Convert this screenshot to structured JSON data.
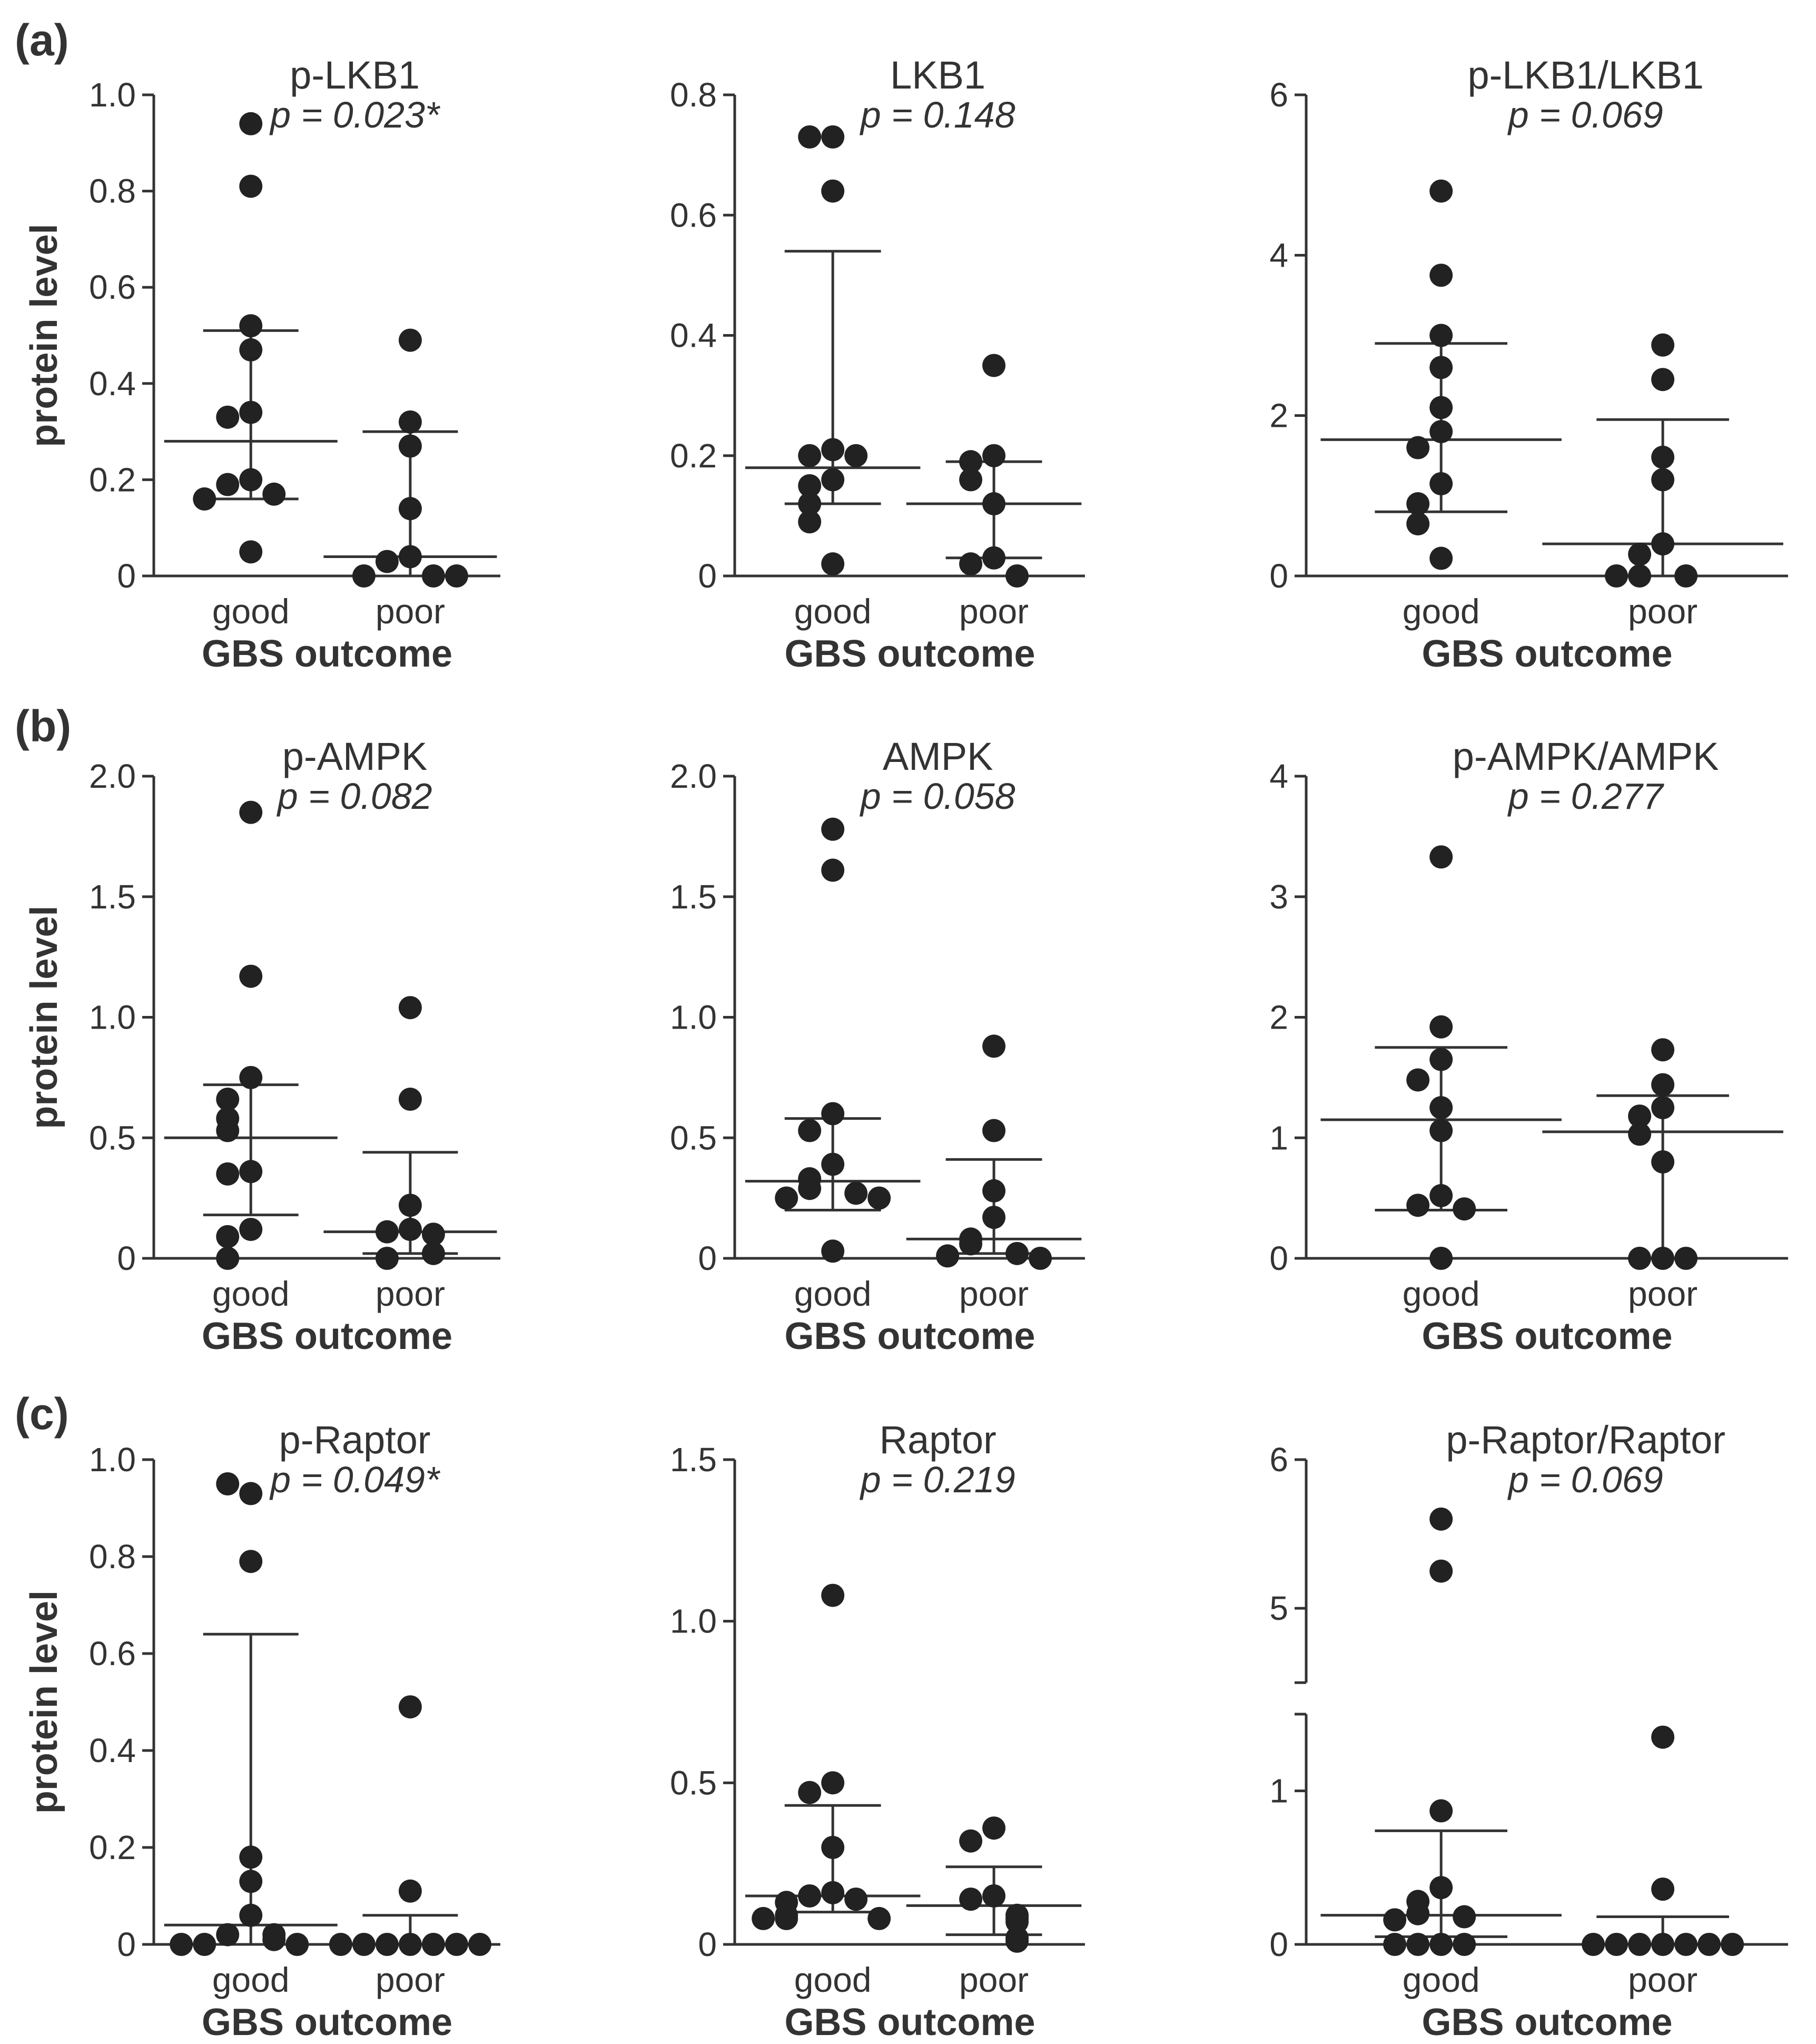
{
  "panel_labels": [
    "(a)",
    "(b)",
    "(c)"
  ],
  "chart_data": [
    {
      "type": "scatter",
      "panel": "a",
      "title": "p-LKB1",
      "pvalue": "p = 0.023*",
      "xlabel": "GBS outcome",
      "ylabel": "protein level",
      "categories": [
        "good",
        "poor"
      ],
      "ylim": [
        0,
        1.0
      ],
      "yticks": [
        "0",
        "0.2",
        "0.4",
        "0.6",
        "0.8",
        "1.0"
      ],
      "series": [
        {
          "name": "good",
          "values": [
            0.94,
            0.81,
            0.52,
            0.47,
            0.34,
            0.33,
            0.2,
            0.19,
            0.17,
            0.16,
            0.05
          ],
          "median": 0.28,
          "q1": 0.16,
          "q3": 0.51
        },
        {
          "name": "poor",
          "values": [
            0.49,
            0.32,
            0.27,
            0.14,
            0.04,
            0.03,
            0.0,
            0.0,
            0.0
          ],
          "median": 0.04,
          "q1": 0.0,
          "q3": 0.3
        }
      ]
    },
    {
      "type": "scatter",
      "panel": "a",
      "title": "LKB1",
      "pvalue": "p = 0.148",
      "xlabel": "GBS outcome",
      "ylabel": "",
      "categories": [
        "good",
        "poor"
      ],
      "ylim": [
        0,
        0.8
      ],
      "yticks": [
        "0",
        "0.2",
        "0.4",
        "0.6",
        "0.8"
      ],
      "series": [
        {
          "name": "good",
          "values": [
            0.73,
            0.73,
            0.64,
            0.21,
            0.2,
            0.2,
            0.16,
            0.15,
            0.12,
            0.09,
            0.02
          ],
          "median": 0.18,
          "q1": 0.12,
          "q3": 0.54
        },
        {
          "name": "poor",
          "values": [
            0.35,
            0.2,
            0.19,
            0.16,
            0.12,
            0.03,
            0.02,
            0.0
          ],
          "median": 0.12,
          "q1": 0.03,
          "q3": 0.19
        }
      ]
    },
    {
      "type": "scatter",
      "panel": "a",
      "title": "p-LKB1/LKB1",
      "pvalue": "p = 0.069",
      "xlabel": "GBS outcome",
      "ylabel": "",
      "categories": [
        "good",
        "poor"
      ],
      "ylim": [
        0,
        6
      ],
      "yticks": [
        "0",
        "2",
        "4",
        "6"
      ],
      "series": [
        {
          "name": "good",
          "values": [
            4.8,
            3.75,
            3.0,
            2.6,
            2.1,
            1.8,
            1.6,
            1.15,
            0.9,
            0.65,
            0.22
          ],
          "median": 1.7,
          "q1": 0.8,
          "q3": 2.9
        },
        {
          "name": "poor",
          "values": [
            2.88,
            2.45,
            1.48,
            1.2,
            0.4,
            0.27,
            0.0,
            0.0,
            0.0
          ],
          "median": 0.4,
          "q1": 0.0,
          "q3": 1.95
        }
      ]
    },
    {
      "type": "scatter",
      "panel": "b",
      "title": "p-AMPK",
      "pvalue": "p = 0.082",
      "xlabel": "GBS outcome",
      "ylabel": "protein level",
      "categories": [
        "good",
        "poor"
      ],
      "ylim": [
        0,
        2.0
      ],
      "yticks": [
        "0",
        "0.5",
        "1.0",
        "1.5",
        "2.0"
      ],
      "series": [
        {
          "name": "good",
          "values": [
            1.85,
            1.17,
            0.75,
            0.66,
            0.58,
            0.53,
            0.36,
            0.35,
            0.12,
            0.09,
            0.0
          ],
          "median": 0.5,
          "q1": 0.18,
          "q3": 0.72
        },
        {
          "name": "poor",
          "values": [
            1.04,
            0.66,
            0.22,
            0.12,
            0.11,
            0.1,
            0.02,
            0.0
          ],
          "median": 0.11,
          "q1": 0.02,
          "q3": 0.44
        }
      ]
    },
    {
      "type": "scatter",
      "panel": "b",
      "title": "AMPK",
      "pvalue": "p = 0.058",
      "xlabel": "GBS outcome",
      "ylabel": "",
      "categories": [
        "good",
        "poor"
      ],
      "ylim": [
        0,
        2.0
      ],
      "yticks": [
        "0",
        "0.5",
        "1.0",
        "1.5",
        "2.0"
      ],
      "series": [
        {
          "name": "good",
          "values": [
            1.78,
            1.61,
            0.6,
            0.53,
            0.39,
            0.33,
            0.29,
            0.27,
            0.25,
            0.25,
            0.03
          ],
          "median": 0.32,
          "q1": 0.2,
          "q3": 0.58
        },
        {
          "name": "poor",
          "values": [
            0.88,
            0.53,
            0.28,
            0.17,
            0.08,
            0.06,
            0.02,
            0.01,
            0.0
          ],
          "median": 0.08,
          "q1": 0.02,
          "q3": 0.41
        }
      ]
    },
    {
      "type": "scatter",
      "panel": "b",
      "title": "p-AMPK/AMPK",
      "pvalue": "p = 0.277",
      "xlabel": "GBS outcome",
      "ylabel": "",
      "categories": [
        "good",
        "poor"
      ],
      "ylim": [
        0,
        4
      ],
      "yticks": [
        "0",
        "1",
        "2",
        "3",
        "4"
      ],
      "series": [
        {
          "name": "good",
          "values": [
            3.33,
            1.92,
            1.65,
            1.48,
            1.25,
            1.06,
            0.52,
            0.44,
            0.41,
            0.0
          ],
          "median": 1.15,
          "q1": 0.4,
          "q3": 1.75
        },
        {
          "name": "poor",
          "values": [
            1.73,
            1.44,
            1.25,
            1.18,
            1.03,
            0.8,
            0.0,
            0.0,
            0.0
          ],
          "median": 1.05,
          "q1": 0.0,
          "q3": 1.35
        }
      ]
    },
    {
      "type": "scatter",
      "panel": "c",
      "title": "p-Raptor",
      "pvalue": "p = 0.049*",
      "xlabel": "GBS outcome",
      "ylabel": "protein level",
      "categories": [
        "good",
        "poor"
      ],
      "ylim": [
        0,
        1.0
      ],
      "yticks": [
        "0",
        "0.2",
        "0.4",
        "0.6",
        "0.8",
        "1.0"
      ],
      "series": [
        {
          "name": "good",
          "values": [
            0.93,
            0.95,
            0.79,
            0.18,
            0.13,
            0.06,
            0.02,
            0.02,
            0.01,
            0.0,
            0.0,
            0.0
          ],
          "median": 0.04,
          "q1": 0.0,
          "q3": 0.64
        },
        {
          "name": "poor",
          "values": [
            0.49,
            0.11,
            0.0,
            0.0,
            0.0,
            0.0,
            0.0,
            0.0,
            0.0
          ],
          "median": 0.0,
          "q1": 0.0,
          "q3": 0.06
        }
      ]
    },
    {
      "type": "scatter",
      "panel": "c",
      "title": "Raptor",
      "pvalue": "p = 0.219",
      "xlabel": "GBS outcome",
      "ylabel": "",
      "categories": [
        "good",
        "poor"
      ],
      "ylim": [
        0,
        1.5
      ],
      "yticks": [
        "0",
        "0.5",
        "1.0",
        "1.5"
      ],
      "series": [
        {
          "name": "good",
          "values": [
            1.08,
            0.5,
            0.47,
            0.3,
            0.16,
            0.15,
            0.14,
            0.13,
            0.09,
            0.08,
            0.08,
            0.08
          ],
          "median": 0.15,
          "q1": 0.1,
          "q3": 0.43
        },
        {
          "name": "poor",
          "values": [
            0.36,
            0.32,
            0.15,
            0.14,
            0.09,
            0.08,
            0.07,
            0.02,
            0.01
          ],
          "median": 0.12,
          "q1": 0.03,
          "q3": 0.24
        }
      ]
    },
    {
      "type": "scatter",
      "panel": "c",
      "title": "p-Raptor/Raptor",
      "pvalue": "p = 0.069",
      "xlabel": "GBS outcome",
      "ylabel": "",
      "categories": [
        "good",
        "poor"
      ],
      "broken_axis": true,
      "ylim": [
        0,
        6
      ],
      "yticks": [
        "0",
        "1",
        "5",
        "6"
      ],
      "series": [
        {
          "name": "good",
          "values": [
            5.6,
            5.25,
            0.87,
            0.37,
            0.28,
            0.2,
            0.18,
            0.16,
            0.0,
            0.0,
            0.0,
            0.0
          ],
          "median": 0.19,
          "q1": 0.05,
          "q3": 0.74
        },
        {
          "name": "poor",
          "values": [
            1.35,
            0.36,
            0.0,
            0.0,
            0.0,
            0.0,
            0.0,
            0.0,
            0.0
          ],
          "median": 0.0,
          "q1": 0.0,
          "q3": 0.18
        }
      ]
    }
  ]
}
